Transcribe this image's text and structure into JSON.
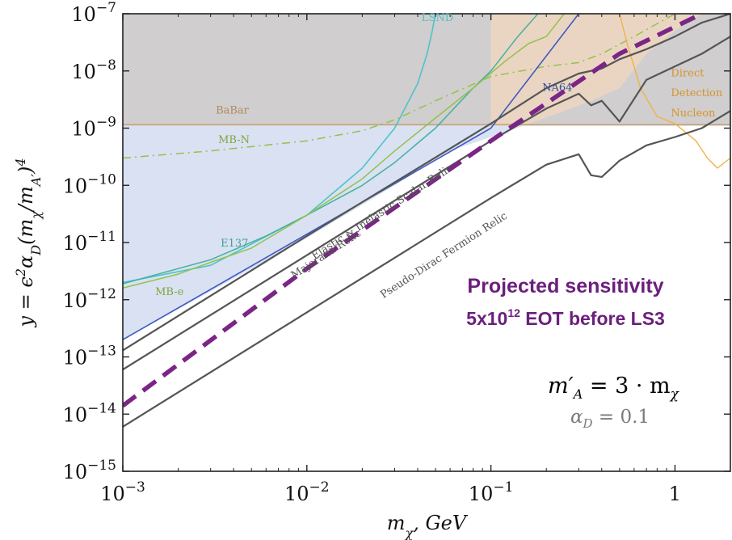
{
  "chart_data": {
    "type": "line",
    "xscale": "log",
    "yscale": "log",
    "xlim": [
      0.001,
      2.0
    ],
    "ylim": [
      1e-15,
      1e-07
    ],
    "xlabel": "m_χ, GeV",
    "ylabel": "y = ε²α_D(m_χ/m_A')⁴",
    "x_ticks": [
      {
        "base": "10",
        "exp": "−3",
        "value": 0.001
      },
      {
        "base": "10",
        "exp": "−2",
        "value": 0.01
      },
      {
        "base": "10",
        "exp": "−1",
        "value": 0.1
      },
      {
        "base": "1",
        "exp": "",
        "value": 1
      }
    ],
    "y_ticks": [
      {
        "exp": "−7",
        "value": 1e-07
      },
      {
        "exp": "−8",
        "value": 1e-08
      },
      {
        "exp": "−9",
        "value": 1e-09
      },
      {
        "exp": "−10",
        "value": 1e-10
      },
      {
        "exp": "−11",
        "value": 1e-11
      },
      {
        "exp": "−12",
        "value": 1e-12
      },
      {
        "exp": "−13",
        "value": 1e-13
      },
      {
        "exp": "−14",
        "value": 1e-14
      },
      {
        "exp": "−15",
        "value": 1e-15
      }
    ],
    "regions": [
      {
        "name": "BaBar",
        "color": "#a9a6a6",
        "opacity": 0.55,
        "points": [
          [
            0.001,
            1.1e-09
          ],
          [
            2.0,
            1.1e-09
          ],
          [
            2.0,
            1e-07
          ],
          [
            0.001,
            1e-07
          ]
        ]
      },
      {
        "name": "",
        "color": "#b9c8ea",
        "opacity": 0.55,
        "points": [
          [
            0.001,
            2e-13
          ],
          [
            0.003,
            1.4e-12
          ],
          [
            0.01,
            1.2e-11
          ],
          [
            0.03,
            1e-10
          ],
          [
            0.06,
            4e-10
          ],
          [
            0.15,
            1.1e-09
          ],
          [
            0.15,
            1.1e-09
          ],
          [
            0.001,
            1.1e-09
          ]
        ]
      },
      {
        "name": "Direct Detection Nucleon",
        "color": "#f0d7c0",
        "opacity": 0.8,
        "points": [
          [
            0.15,
            1.1e-09
          ],
          [
            0.25,
            2e-09
          ],
          [
            0.35,
            3e-09
          ],
          [
            0.5,
            5e-09
          ],
          [
            0.7,
            2e-08
          ],
          [
            1.0,
            5e-08
          ],
          [
            1.4,
            1e-07
          ],
          [
            0.1,
            1e-07
          ],
          [
            0.1,
            1.1e-09
          ]
        ]
      }
    ],
    "series": [
      {
        "name": "BaBar",
        "color": "#c7a37b",
        "width": 1.6,
        "dash": "",
        "x": [
          0.001,
          2.0
        ],
        "y": [
          1.15e-09,
          1.15e-09
        ]
      },
      {
        "name": "LSND",
        "color": "#4fc3c8",
        "width": 1.6,
        "dash": "",
        "x": [
          0.001,
          0.003,
          0.01,
          0.02,
          0.03,
          0.04,
          0.045,
          0.048,
          0.05
        ],
        "y": [
          2e-12,
          4e-12,
          3e-11,
          2e-10,
          1e-09,
          6e-09,
          2e-08,
          5e-08,
          1e-07
        ]
      },
      {
        "name": "MB-N",
        "color": "#93c24a",
        "width": 1.5,
        "dash": "10,5,2,5",
        "x": [
          0.001,
          0.003,
          0.01,
          0.02,
          0.03,
          0.05,
          0.1,
          0.2,
          0.3,
          0.4,
          0.6,
          1.0
        ],
        "y": [
          3e-10,
          4e-10,
          6e-10,
          9e-10,
          1.4e-09,
          3e-09,
          8e-09,
          1.2e-08,
          1.4e-08,
          2e-08,
          4e-08,
          1e-07
        ]
      },
      {
        "name": "E137",
        "color": "#43b0a0",
        "width": 1.5,
        "dash": "",
        "x": [
          0.001,
          0.003,
          0.006,
          0.01,
          0.02,
          0.03,
          0.05,
          0.08,
          0.1,
          0.14,
          0.18
        ],
        "y": [
          1.9e-12,
          5e-12,
          1.3e-11,
          3e-11,
          1e-10,
          2.5e-10,
          1e-09,
          5e-09,
          1e-08,
          4e-08,
          1e-07
        ]
      },
      {
        "name": "MB-e",
        "color": "#93c24a",
        "width": 1.5,
        "dash": "",
        "x": [
          0.001,
          0.002,
          0.003,
          0.005,
          0.01,
          0.02,
          0.03,
          0.05,
          0.08,
          0.12,
          0.16,
          0.2,
          0.25
        ],
        "y": [
          1.6e-12,
          2.8e-12,
          4.5e-12,
          8e-12,
          3e-11,
          1.3e-10,
          4e-10,
          1.5e-09,
          5e-09,
          1.5e-08,
          3e-08,
          4e-08,
          1e-07
        ]
      },
      {
        "name": "NA64",
        "color": "#3e5bbf",
        "width": 1.6,
        "dash": "",
        "x": [
          0.001,
          0.01,
          0.1,
          0.3
        ],
        "y": [
          2e-13,
          1.4e-11,
          1e-09,
          1e-07
        ]
      },
      {
        "name": "Direct Detection",
        "color": "#f0b347",
        "width": 1.4,
        "dash": "",
        "x": [
          0.5,
          0.55,
          0.65,
          0.8,
          1.0,
          1.3,
          1.5,
          1.7,
          2.0
        ],
        "y": [
          1e-07,
          3e-08,
          5e-09,
          1.6e-09,
          1.2e-09,
          6e-10,
          3e-10,
          2e-10,
          3e-10
        ]
      },
      {
        "name": "Elastic & Inelastic Scalar Relic",
        "color": "#555555",
        "width": 2.2,
        "dash": "",
        "x": [
          0.001,
          0.01,
          0.1,
          0.2,
          0.3,
          0.4,
          0.5,
          0.7,
          1.0,
          1.4,
          2.0
        ],
        "y": [
          1.3e-13,
          1.3e-11,
          1.2e-09,
          5e-09,
          9e-09,
          1.1e-08,
          1.6e-08,
          2.4e-08,
          4e-08,
          7e-08,
          1e-07
        ]
      },
      {
        "name": "Majorana Relic",
        "color": "#555555",
        "width": 2.2,
        "dash": "",
        "x": [
          0.001,
          0.01,
          0.1,
          0.2,
          0.3,
          0.35,
          0.4,
          0.5,
          0.7,
          1.0,
          1.4,
          2.0
        ],
        "y": [
          6e-14,
          6e-12,
          6e-10,
          2.2e-09,
          4e-09,
          2.5e-09,
          3e-09,
          1.3e-09,
          7e-09,
          1.2e-08,
          2e-08,
          4e-08
        ]
      },
      {
        "name": "Pseudo-Dirac Fermion Relic",
        "color": "#555555",
        "width": 2.2,
        "dash": "",
        "x": [
          0.001,
          0.01,
          0.1,
          0.2,
          0.3,
          0.35,
          0.4,
          0.5,
          0.7,
          1.0,
          1.4,
          2.0
        ],
        "y": [
          6e-15,
          6e-13,
          6e-11,
          2.3e-10,
          3.5e-10,
          1.5e-10,
          1.4e-10,
          2.7e-10,
          5e-10,
          7e-10,
          1e-09,
          2e-09
        ]
      },
      {
        "name": "Projected sensitivity",
        "color": "#7b2586",
        "width": 5.5,
        "dash": "20,11",
        "x": [
          0.001,
          0.01,
          0.1,
          0.5,
          1.4
        ],
        "y": [
          1.4e-14,
          3.5e-12,
          6e-10,
          2e-08,
          1e-07
        ]
      }
    ],
    "curve_labels": [
      {
        "text": "LSND",
        "x": 0.042,
        "y": 7.5e-08,
        "color": "#4fc3c8",
        "rotate": 0
      },
      {
        "text": "BaBar",
        "x": 0.0032,
        "y": 1.8e-09,
        "color": "#b08a5e",
        "rotate": 0
      },
      {
        "text": "MB-N",
        "x": 0.0033,
        "y": 5.5e-10,
        "color": "#7fa83a",
        "rotate": 0
      },
      {
        "text": "E137",
        "x": 0.0034,
        "y": 8.5e-12,
        "color": "#43a08e",
        "rotate": 0
      },
      {
        "text": "MB-e",
        "x": 0.0015,
        "y": 1.2e-12,
        "color": "#7fa83a",
        "rotate": 0
      },
      {
        "text": "NA64",
        "x": 0.19,
        "y": 4.5e-09,
        "color": "#2f4ea0",
        "rotate": 0
      },
      {
        "text": "Direct",
        "x": 0.95,
        "y": 8e-09,
        "color": "#d4942c",
        "rotate": 0
      },
      {
        "text": "Detection",
        "x": 0.95,
        "y": 3.6e-09,
        "color": "#d4942c",
        "rotate": 0
      },
      {
        "text": "Nucleon",
        "x": 0.95,
        "y": 1.6e-09,
        "color": "#d4942c",
        "rotate": 0
      },
      {
        "text": "Elastic & Inelastic Scalar Relic",
        "x": 0.011,
        "y": 5e-12,
        "color": "#555555",
        "rotate": -33
      },
      {
        "text": "Majorana Relic",
        "x": 0.0085,
        "y": 2.3e-12,
        "color": "#555555",
        "rotate": -33
      },
      {
        "text": "Pseudo-Dirac Fermion Relic",
        "x": 0.026,
        "y": 1.05e-12,
        "color": "#555555",
        "rotate": -33
      }
    ],
    "annotation": {
      "line1": "Projected sensitivity",
      "line2_pre": "5x10",
      "line2_sup": "12",
      "line2_post": " EOT before LS3",
      "formula_main_lhs": "m′",
      "formula_main_sub": "A",
      "formula_main_mid": " = 3 · m",
      "formula_main_sub2": "χ",
      "formula_alpha": "α",
      "formula_alpha_sub": "D",
      "formula_alpha_val": " = 0.1"
    }
  }
}
